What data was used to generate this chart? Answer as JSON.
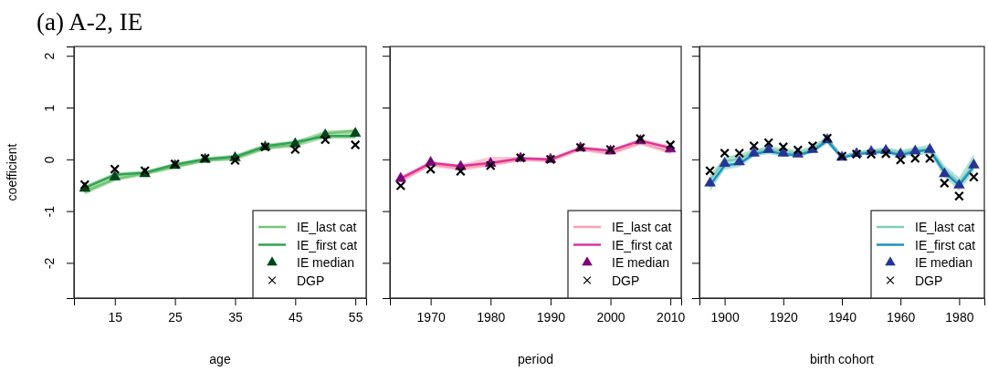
{
  "chart_data": [
    {
      "type": "line",
      "title": "(a)  A-2, IE",
      "xlabel": "age",
      "ylabel": "coefficient",
      "xlim": [
        8.2,
        56.8
      ],
      "xticks": [
        15,
        25,
        35,
        45,
        55
      ],
      "ylim": [
        -2.68,
        2.18
      ],
      "yticks": [
        -2,
        -1,
        0,
        1,
        2
      ],
      "legend": "bottom right",
      "x": [
        10,
        15,
        20,
        25,
        30,
        35,
        40,
        45,
        50,
        55
      ],
      "series": [
        {
          "name": "IE_last cat",
          "color": "#74c476",
          "values": [
            -0.62,
            -0.38,
            -0.27,
            -0.14,
            -0.02,
            0.02,
            0.22,
            0.28,
            0.5,
            0.55
          ],
          "lower": [
            -0.68,
            -0.42,
            -0.31,
            -0.18,
            -0.05,
            -0.02,
            0.18,
            0.24,
            0.4,
            0.4
          ],
          "upper": [
            -0.5,
            -0.26,
            -0.22,
            -0.07,
            0.04,
            0.09,
            0.3,
            0.36,
            0.55,
            0.58
          ]
        },
        {
          "name": "IE_first cat",
          "color": "#31a354",
          "values": [
            -0.55,
            -0.3,
            -0.26,
            -0.1,
            0.0,
            0.05,
            0.25,
            0.33,
            0.45,
            0.45
          ]
        },
        {
          "name": "IE median",
          "type": "scatter",
          "marker": "triangle",
          "color": "#00441b",
          "values": [
            -0.56,
            -0.34,
            -0.28,
            -0.12,
            0.0,
            0.03,
            0.24,
            0.3,
            0.47,
            0.5
          ]
        },
        {
          "name": "DGP",
          "type": "scatter",
          "marker": "cross",
          "color": "#000000",
          "values": [
            -0.49,
            -0.19,
            -0.22,
            -0.09,
            0.02,
            -0.02,
            0.24,
            0.19,
            0.38,
            0.28
          ]
        }
      ]
    },
    {
      "type": "line",
      "xlabel": "period",
      "xlim": [
        1963.2,
        2011.8
      ],
      "xticks": [
        1970,
        1980,
        1990,
        2000,
        2010
      ],
      "ylim": [
        -2.68,
        2.18
      ],
      "yticks": [
        -2,
        -1,
        0,
        1,
        2
      ],
      "tick_labels": "x",
      "legend": "bottom right",
      "x": [
        1965,
        1970,
        1975,
        1980,
        1985,
        1990,
        1995,
        2000,
        2005,
        2010
      ],
      "series": [
        {
          "name": "IE_last cat",
          "color": "#fa9fb5",
          "values": [
            -0.4,
            -0.1,
            -0.17,
            -0.1,
            0.0,
            -0.02,
            0.2,
            0.12,
            0.32,
            0.15
          ],
          "lower": [
            -0.45,
            -0.14,
            -0.22,
            -0.14,
            -0.04,
            -0.06,
            0.16,
            0.08,
            0.28,
            0.1
          ],
          "upper": [
            -0.32,
            -0.03,
            -0.1,
            0.05,
            0.05,
            0.03,
            0.25,
            0.2,
            0.4,
            0.27
          ]
        },
        {
          "name": "IE_first cat",
          "color": "#dd3497",
          "values": [
            -0.37,
            -0.07,
            -0.13,
            -0.07,
            0.02,
            0.0,
            0.22,
            0.17,
            0.36,
            0.22
          ]
        },
        {
          "name": "IE median",
          "type": "scatter",
          "marker": "triangle",
          "color": "#7a0177",
          "values": [
            -0.37,
            -0.06,
            -0.14,
            -0.08,
            0.02,
            0.0,
            0.22,
            0.16,
            0.36,
            0.2
          ]
        },
        {
          "name": "DGP",
          "type": "scatter",
          "marker": "cross",
          "color": "#000000",
          "values": [
            -0.51,
            -0.19,
            -0.23,
            -0.12,
            0.03,
            0.0,
            0.23,
            0.19,
            0.4,
            0.28
          ]
        }
      ]
    },
    {
      "type": "line",
      "xlabel": "birth cohort",
      "xlim": [
        1891.4,
        1988.6
      ],
      "xticks": [
        1900,
        1920,
        1940,
        1960,
        1980
      ],
      "ylim": [
        -2.68,
        2.18
      ],
      "yticks": [
        -2,
        -1,
        0,
        1,
        2
      ],
      "tick_labels": "x",
      "legend": "bottom right",
      "x": [
        1895,
        1900,
        1905,
        1910,
        1915,
        1920,
        1925,
        1930,
        1935,
        1940,
        1945,
        1950,
        1955,
        1960,
        1965,
        1970,
        1975,
        1980,
        1985
      ],
      "series": [
        {
          "name": "IE_last cat",
          "color": "#7fcdbb",
          "values": [
            -0.4,
            -0.03,
            0.0,
            0.15,
            0.2,
            0.15,
            0.12,
            0.2,
            0.4,
            0.05,
            0.12,
            0.16,
            0.18,
            0.12,
            0.18,
            0.2,
            -0.2,
            -0.45,
            -0.1
          ],
          "lower": [
            -0.62,
            -0.2,
            -0.15,
            0.05,
            0.1,
            0.05,
            0.05,
            0.12,
            0.3,
            0.0,
            0.06,
            0.1,
            0.1,
            0.04,
            0.08,
            0.1,
            -0.35,
            -0.6,
            -0.25
          ],
          "upper": [
            -0.3,
            0.05,
            0.1,
            0.2,
            0.25,
            0.22,
            0.18,
            0.26,
            0.46,
            0.09,
            0.16,
            0.2,
            0.24,
            0.18,
            0.24,
            0.28,
            -0.12,
            -0.35,
            0.1
          ]
        },
        {
          "name": "IE_first cat",
          "color": "#1d91c0",
          "values": [
            -0.5,
            -0.12,
            -0.08,
            0.1,
            0.16,
            0.1,
            0.08,
            0.16,
            0.36,
            0.03,
            0.1,
            0.13,
            0.15,
            0.08,
            0.15,
            0.18,
            -0.25,
            -0.5,
            -0.14
          ]
        },
        {
          "name": "IE median",
          "type": "scatter",
          "marker": "triangle",
          "color": "#253494",
          "values": [
            -0.46,
            -0.08,
            -0.05,
            0.12,
            0.19,
            0.12,
            0.1,
            0.19,
            0.38,
            0.04,
            0.11,
            0.15,
            0.17,
            0.1,
            0.16,
            0.19,
            -0.28,
            -0.5,
            -0.11
          ]
        },
        {
          "name": "DGP",
          "type": "scatter",
          "marker": "cross",
          "color": "#000000",
          "values": [
            -0.22,
            0.12,
            0.12,
            0.26,
            0.32,
            0.24,
            0.18,
            0.26,
            0.41,
            0.06,
            0.1,
            0.1,
            0.11,
            -0.01,
            0.02,
            0.02,
            -0.46,
            -0.71,
            -0.34
          ]
        }
      ]
    }
  ]
}
